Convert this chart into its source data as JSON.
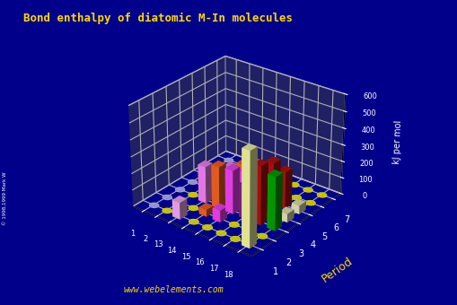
{
  "title": "Bond enthalpy of diatomic M-In molecules",
  "ylabel": "Period",
  "zlabel": "kJ per mol",
  "background_color": "#00008B",
  "title_color": "#FFD700",
  "watermark": "www.webelements.com",
  "groups": [
    1,
    2,
    13,
    14,
    15,
    16,
    17,
    18
  ],
  "periods": [
    1,
    2,
    3,
    4,
    5,
    6,
    7
  ],
  "zlim": [
    0,
    600
  ],
  "zticks": [
    0,
    100,
    200,
    300,
    400,
    500,
    600
  ],
  "values": {
    "1": [
      0,
      0,
      0,
      0,
      0,
      0,
      0
    ],
    "2": [
      0,
      0,
      0,
      0,
      0,
      0,
      0
    ],
    "13": [
      100,
      0,
      220,
      100,
      120,
      75,
      0
    ],
    "14": [
      0,
      40,
      250,
      160,
      170,
      130,
      0
    ],
    "15": [
      0,
      70,
      260,
      200,
      175,
      0,
      0
    ],
    "16": [
      0,
      0,
      200,
      230,
      180,
      0,
      0
    ],
    "17": [
      0,
      0,
      350,
      320,
      220,
      0,
      0
    ],
    "18": [
      560,
      0,
      320,
      50,
      50,
      0,
      0
    ]
  },
  "bar_colors": {
    "1": "#AAAAEE",
    "2": "#FFFF44",
    "13": "#FF88FF",
    "14": "#FF6622",
    "15": "#FF44FF",
    "16": "#882299",
    "17": "#BB1111",
    "18": "#EEEEBB"
  },
  "special_colors": {
    "18_0": "#FFFFAA",
    "18_2": "#00AA00",
    "18_6": "#FFB0D0",
    "13_0": "#FFB0FF"
  },
  "dot_colors": {
    "1": "#9999CC",
    "2": "#CCCC00",
    "13": "#CCCC00",
    "14": "#CCCC00",
    "15": "#CCCC00",
    "16": "#CCCC00",
    "17": "#CCCC00",
    "18": "#CCCC00"
  }
}
